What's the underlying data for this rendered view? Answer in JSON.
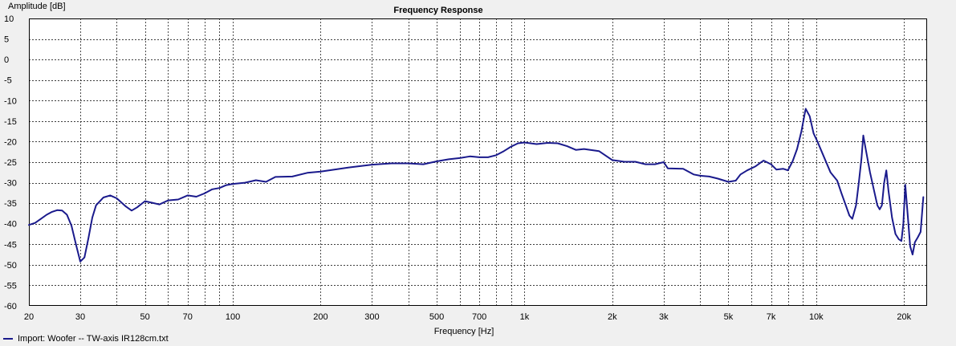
{
  "chart_data": {
    "type": "line",
    "title": "Frequency Response",
    "xlabel": "Frequency [Hz]",
    "ylabel": "Amplitude [dB]",
    "x_scale": "log",
    "xlim": [
      20,
      24000
    ],
    "ylim": [
      -60,
      10
    ],
    "grid": true,
    "x_ticks": [
      {
        "value": 20,
        "label": "20"
      },
      {
        "value": 30,
        "label": "30"
      },
      {
        "value": 50,
        "label": "50"
      },
      {
        "value": 70,
        "label": "70"
      },
      {
        "value": 100,
        "label": "100"
      },
      {
        "value": 200,
        "label": "200"
      },
      {
        "value": 300,
        "label": "300"
      },
      {
        "value": 500,
        "label": "500"
      },
      {
        "value": 700,
        "label": "700"
      },
      {
        "value": 1000,
        "label": "1k"
      },
      {
        "value": 2000,
        "label": "2k"
      },
      {
        "value": 3000,
        "label": "3k"
      },
      {
        "value": 5000,
        "label": "5k"
      },
      {
        "value": 7000,
        "label": "7k"
      },
      {
        "value": 10000,
        "label": "10k"
      },
      {
        "value": 20000,
        "label": "20k"
      }
    ],
    "y_ticks": [
      10,
      5,
      0,
      -5,
      -10,
      -15,
      -20,
      -25,
      -30,
      -35,
      -40,
      -45,
      -50,
      -55,
      -60
    ],
    "series": [
      {
        "name": "Import: Woofer -- TW-axis IR128cm.txt",
        "color": "#1a1a8c",
        "points": [
          [
            20,
            -40.3
          ],
          [
            21,
            -39.8
          ],
          [
            22,
            -38.8
          ],
          [
            23,
            -37.8
          ],
          [
            24,
            -37.1
          ],
          [
            25,
            -36.7
          ],
          [
            26,
            -36.8
          ],
          [
            27,
            -37.8
          ],
          [
            28,
            -40.5
          ],
          [
            29,
            -45.0
          ],
          [
            30,
            -49.2
          ],
          [
            31,
            -48.2
          ],
          [
            32,
            -43.5
          ],
          [
            33,
            -38.5
          ],
          [
            34,
            -35.5
          ],
          [
            36,
            -33.6
          ],
          [
            38,
            -33.1
          ],
          [
            40,
            -33.8
          ],
          [
            43,
            -35.8
          ],
          [
            45,
            -36.8
          ],
          [
            47,
            -36.0
          ],
          [
            50,
            -34.5
          ],
          [
            53,
            -34.9
          ],
          [
            56,
            -35.3
          ],
          [
            60,
            -34.3
          ],
          [
            65,
            -34.1
          ],
          [
            70,
            -33.1
          ],
          [
            75,
            -33.4
          ],
          [
            80,
            -32.6
          ],
          [
            85,
            -31.6
          ],
          [
            90,
            -31.3
          ],
          [
            95,
            -30.6
          ],
          [
            100,
            -30.3
          ],
          [
            110,
            -30.0
          ],
          [
            120,
            -29.4
          ],
          [
            130,
            -29.8
          ],
          [
            140,
            -28.6
          ],
          [
            160,
            -28.5
          ],
          [
            180,
            -27.6
          ],
          [
            200,
            -27.3
          ],
          [
            250,
            -26.3
          ],
          [
            300,
            -25.6
          ],
          [
            350,
            -25.3
          ],
          [
            400,
            -25.3
          ],
          [
            450,
            -25.5
          ],
          [
            500,
            -24.8
          ],
          [
            550,
            -24.3
          ],
          [
            600,
            -24.0
          ],
          [
            650,
            -23.6
          ],
          [
            700,
            -23.8
          ],
          [
            750,
            -23.8
          ],
          [
            800,
            -23.3
          ],
          [
            850,
            -22.3
          ],
          [
            900,
            -21.2
          ],
          [
            950,
            -20.4
          ],
          [
            1000,
            -20.2
          ],
          [
            1100,
            -20.6
          ],
          [
            1200,
            -20.3
          ],
          [
            1300,
            -20.4
          ],
          [
            1400,
            -21.1
          ],
          [
            1500,
            -22.0
          ],
          [
            1600,
            -21.8
          ],
          [
            1800,
            -22.3
          ],
          [
            2000,
            -24.5
          ],
          [
            2200,
            -24.9
          ],
          [
            2400,
            -24.9
          ],
          [
            2600,
            -25.5
          ],
          [
            2800,
            -25.5
          ],
          [
            3000,
            -25.0
          ],
          [
            3100,
            -26.5
          ],
          [
            3500,
            -26.6
          ],
          [
            3800,
            -28.0
          ],
          [
            4000,
            -28.3
          ],
          [
            4300,
            -28.5
          ],
          [
            4600,
            -29.0
          ],
          [
            5000,
            -29.8
          ],
          [
            5300,
            -29.5
          ],
          [
            5500,
            -28.0
          ],
          [
            5800,
            -27.0
          ],
          [
            6200,
            -26.0
          ],
          [
            6600,
            -24.6
          ],
          [
            7000,
            -25.5
          ],
          [
            7300,
            -26.8
          ],
          [
            7700,
            -26.6
          ],
          [
            8000,
            -27.0
          ],
          [
            8300,
            -24.8
          ],
          [
            8600,
            -21.8
          ],
          [
            8900,
            -17.5
          ],
          [
            9200,
            -12.0
          ],
          [
            9500,
            -13.8
          ],
          [
            9800,
            -18.0
          ],
          [
            10100,
            -20.0
          ],
          [
            10600,
            -23.5
          ],
          [
            11200,
            -27.5
          ],
          [
            11800,
            -29.5
          ],
          [
            12200,
            -32.5
          ],
          [
            12700,
            -36.0
          ],
          [
            13000,
            -38.0
          ],
          [
            13300,
            -38.8
          ],
          [
            13700,
            -35.5
          ],
          [
            14000,
            -30.0
          ],
          [
            14300,
            -24.0
          ],
          [
            14500,
            -18.5
          ],
          [
            14800,
            -22.0
          ],
          [
            15300,
            -27.5
          ],
          [
            15800,
            -32.0
          ],
          [
            16200,
            -35.5
          ],
          [
            16500,
            -36.5
          ],
          [
            16800,
            -35.5
          ],
          [
            17100,
            -30.0
          ],
          [
            17400,
            -27.0
          ],
          [
            17700,
            -32.0
          ],
          [
            18200,
            -38.5
          ],
          [
            18700,
            -42.5
          ],
          [
            19200,
            -43.8
          ],
          [
            19600,
            -44.2
          ],
          [
            19900,
            -40.0
          ],
          [
            20200,
            -30.5
          ],
          [
            20600,
            -38.0
          ],
          [
            21000,
            -45.5
          ],
          [
            21400,
            -47.5
          ],
          [
            21800,
            -44.5
          ],
          [
            22300,
            -43.3
          ],
          [
            22800,
            -42.0
          ],
          [
            23300,
            -33.5
          ]
        ]
      }
    ]
  }
}
